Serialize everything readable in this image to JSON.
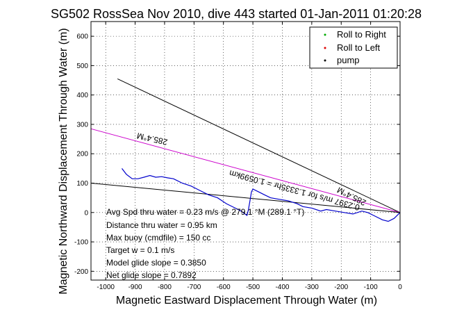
{
  "chart_data": {
    "type": "line",
    "title": "SG502 RossSea Nov 2010, dive 443 started 01-Jan-2011 01:20:28",
    "xlabel": "Magnetic Eastward Displacement Through Water (m)",
    "ylabel": "Magnetic Northward Displacement Through Water (m)",
    "xlim": [
      -1050,
      0
    ],
    "ylim": [
      -230,
      650
    ],
    "xticks": [
      -1000,
      -900,
      -800,
      -700,
      -600,
      -500,
      -400,
      -300,
      -200,
      -100,
      0
    ],
    "yticks": [
      -200,
      -100,
      0,
      100,
      200,
      300,
      400,
      500,
      600
    ],
    "grid": true,
    "legend": {
      "position": "top-right",
      "entries": [
        {
          "label": "Roll to Right",
          "color": "#00aa00",
          "marker": "dot"
        },
        {
          "label": "Roll to Left",
          "color": "#dd0000",
          "marker": "dot"
        },
        {
          "label": "pump",
          "color": "#000000",
          "marker": "dot"
        }
      ]
    },
    "series": [
      {
        "color": "#0000cc",
        "x": [
          0,
          -20,
          -40,
          -60,
          -90,
          -110,
          -130,
          -160,
          -190,
          -220,
          -250,
          -270,
          -300,
          -330,
          -350,
          -380,
          -410,
          -440,
          -460,
          -480,
          -490,
          -500,
          -505,
          -510,
          -515,
          -520,
          -540,
          -560,
          -590,
          -620,
          -650,
          -680,
          -710,
          -740,
          -770,
          -790,
          -810,
          -830,
          -850,
          -870,
          -890,
          -910,
          -930,
          -945
        ],
        "y": [
          0,
          -20,
          -30,
          -25,
          -10,
          0,
          5,
          -5,
          0,
          5,
          10,
          5,
          15,
          20,
          30,
          40,
          45,
          50,
          60,
          70,
          75,
          80,
          70,
          40,
          10,
          -10,
          5,
          15,
          30,
          50,
          60,
          75,
          90,
          100,
          115,
          118,
          122,
          120,
          126,
          120,
          115,
          115,
          130,
          150
        ]
      }
    ],
    "lines": [
      {
        "color": "#000000",
        "x": [
          -960,
          0
        ],
        "y": [
          455,
          0
        ]
      },
      {
        "color": "#cc00cc",
        "x": [
          -1050,
          0
        ],
        "y": [
          285,
          0
        ]
      },
      {
        "color": "#000000",
        "x": [
          -1050,
          0
        ],
        "y": [
          100,
          0
        ]
      }
    ],
    "annotations": {
      "rotated_heading_top": "285.4°M",
      "rotated_heading_mid": "285.4°M",
      "rotated_current": "0.2397 m/s for 1.3335hr = 1.0599km",
      "text_block": [
        "Avg Spd thru water = 0.23 m/s @ 279.1 °M (289.1 °T)",
        "Distance thru water = 0.95 km",
        "Max buoy (cmdfile) = 150 cc",
        "Target w = 0.1 m/s",
        "Model glide slope = 0.3850",
        "Net glide slope = 0.7892"
      ]
    }
  }
}
